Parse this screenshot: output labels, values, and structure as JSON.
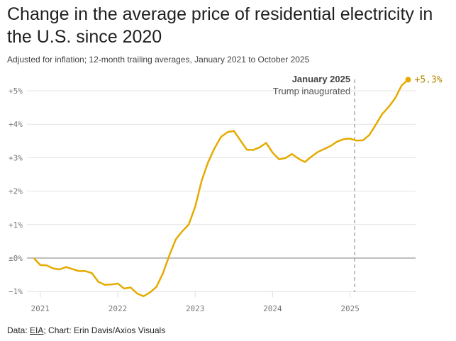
{
  "title": "Change in the average price of residential electricity in the U.S. since 2020",
  "subtitle": "Adjusted for inflation; 12-month trailing averages, January 2021 to October 2025",
  "footer": {
    "prefix": "Data: ",
    "source_link": "EIA",
    "rest": "; Chart: Erin Davis/Axios Visuals"
  },
  "chart_data": {
    "type": "line",
    "title": "Change in the average price of residential electricity in the U.S. since 2020",
    "xlabel": "",
    "ylabel": "",
    "ylim": [
      -1,
      5.3
    ],
    "grid": true,
    "line_color": "#e5ab00",
    "y_ticks": [
      {
        "value": 5,
        "label": "+5%"
      },
      {
        "value": 4,
        "label": "+4%"
      },
      {
        "value": 3,
        "label": "+3%"
      },
      {
        "value": 2,
        "label": "+2%"
      },
      {
        "value": 1,
        "label": "+1%"
      },
      {
        "value": 0,
        "label": "±0%"
      },
      {
        "value": -1,
        "label": "−1%"
      }
    ],
    "x_ticks": [
      {
        "date": "2021-01",
        "label": "2021"
      },
      {
        "date": "2022-01",
        "label": "2022"
      },
      {
        "date": "2023-01",
        "label": "2023"
      },
      {
        "date": "2024-01",
        "label": "2024"
      },
      {
        "date": "2025-01",
        "label": "2025"
      }
    ],
    "annotation": {
      "date": "2025-01",
      "line1": "January 2025",
      "line2": "Trump inaugurated"
    },
    "end_label": "+5.3%",
    "x_start": "2020-12",
    "values": [
      0.0,
      -0.21,
      -0.22,
      -0.31,
      -0.34,
      -0.27,
      -0.33,
      -0.39,
      -0.39,
      -0.45,
      -0.71,
      -0.8,
      -0.79,
      -0.76,
      -0.91,
      -0.88,
      -1.06,
      -1.14,
      -1.03,
      -0.86,
      -0.46,
      0.08,
      0.56,
      0.8,
      1.0,
      1.53,
      2.31,
      2.86,
      3.28,
      3.62,
      3.76,
      3.8,
      3.52,
      3.24,
      3.23,
      3.31,
      3.44,
      3.15,
      2.95,
      2.99,
      3.11,
      2.97,
      2.87,
      3.03,
      3.17,
      3.26,
      3.35,
      3.48,
      3.55,
      3.57,
      3.51,
      3.52,
      3.68,
      3.99,
      4.31,
      4.52,
      4.78,
      5.16,
      5.33
    ]
  }
}
